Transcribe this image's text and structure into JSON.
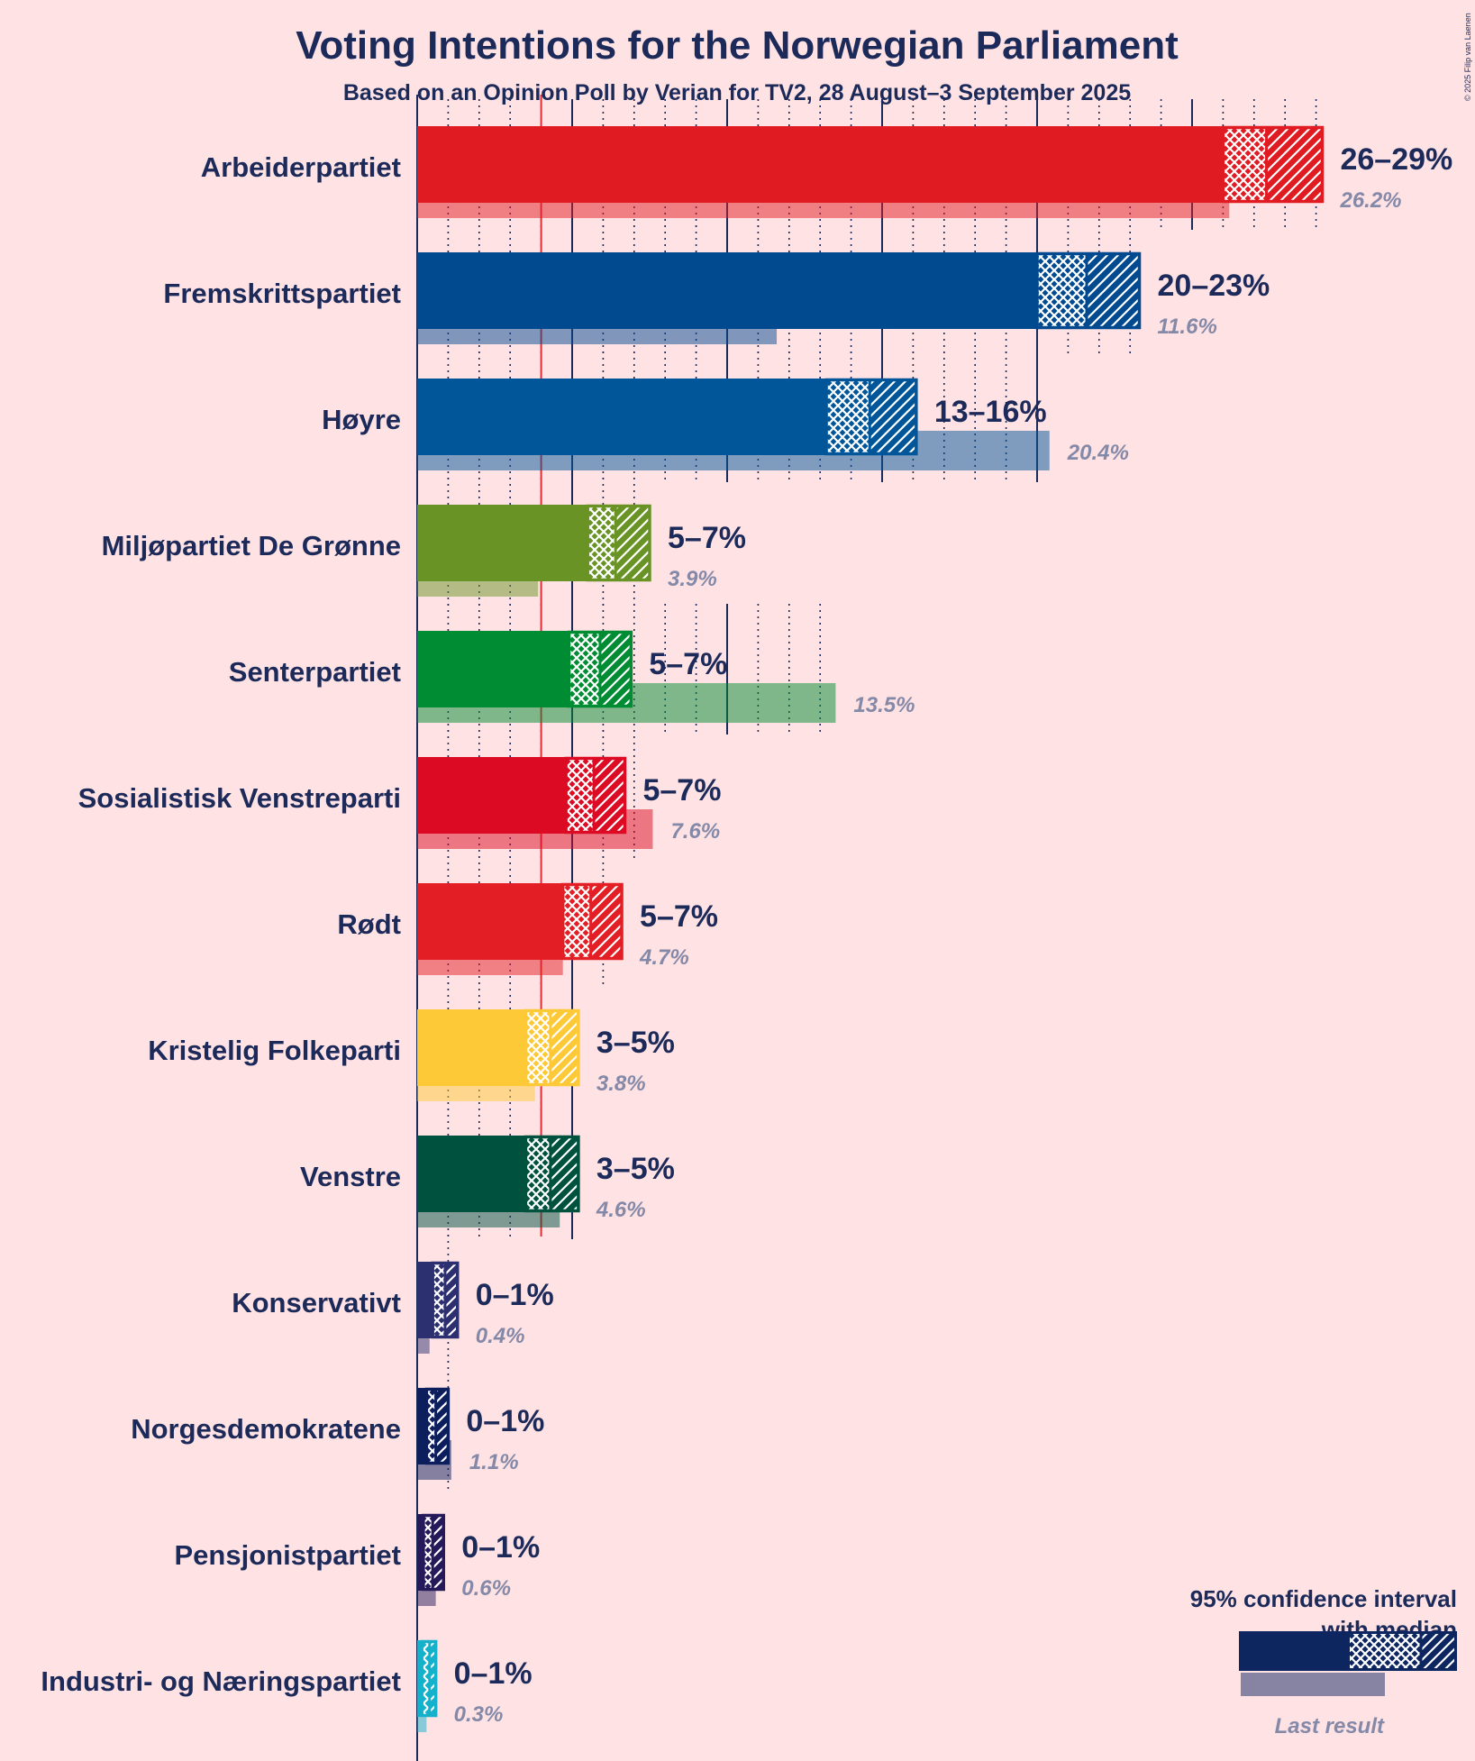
{
  "chart_data": {
    "type": "bar",
    "title": "Voting Intentions for the Norwegian Parliament",
    "subtitle": "Based on an Opinion Poll by Verian for TV2, 28 August–3 September 2025",
    "copyright": "© 2025 Filip van Laenen",
    "orientation": "horizontal",
    "threshold": 4,
    "x_range": [
      0,
      30
    ],
    "series": [
      {
        "name": "Arbeiderpartiet",
        "range_label": "26–29%",
        "last_label": "26.2%",
        "last": 26.2,
        "ci_low": 26.0,
        "median": 27.4,
        "ci_high": 29.2,
        "color": "#E01B22"
      },
      {
        "name": "Fremskrittspartiet",
        "range_label": "20–23%",
        "last_label": "11.6%",
        "last": 11.6,
        "ci_low": 20.0,
        "median": 21.6,
        "ci_high": 23.3,
        "color": "#024A90"
      },
      {
        "name": "Høyre",
        "range_label": "13–16%",
        "last_label": "20.4%",
        "last": 20.4,
        "ci_low": 13.2,
        "median": 14.6,
        "ci_high": 16.1,
        "color": "#005698"
      },
      {
        "name": "Miljøpartiet De Grønne",
        "range_label": "5–7%",
        "last_label": "3.9%",
        "last": 3.9,
        "ci_low": 5.5,
        "median": 6.4,
        "ci_high": 7.5,
        "color": "#6A9326"
      },
      {
        "name": "Senterpartiet",
        "range_label": "5–7%",
        "last_label": "13.5%",
        "last": 13.5,
        "ci_low": 4.9,
        "median": 5.9,
        "ci_high": 6.9,
        "color": "#008C32"
      },
      {
        "name": "Sosialistisk Venstreparti",
        "range_label": "5–7%",
        "last_label": "7.6%",
        "last": 7.6,
        "ci_low": 4.8,
        "median": 5.7,
        "ci_high": 6.7,
        "color": "#DC0A22"
      },
      {
        "name": "Rødt",
        "range_label": "5–7%",
        "last_label": "4.7%",
        "last": 4.7,
        "ci_low": 4.7,
        "median": 5.6,
        "ci_high": 6.6,
        "color": "#E31E24"
      },
      {
        "name": "Kristelig Folkeparti",
        "range_label": "3–5%",
        "last_label": "3.8%",
        "last": 3.8,
        "ci_low": 3.5,
        "median": 4.3,
        "ci_high": 5.2,
        "color": "#FEC936"
      },
      {
        "name": "Venstre",
        "range_label": "3–5%",
        "last_label": "4.6%",
        "last": 4.6,
        "ci_low": 3.5,
        "median": 4.3,
        "ci_high": 5.2,
        "color": "#00523F"
      },
      {
        "name": "Konservativt",
        "range_label": "0–1%",
        "last_label": "0.4%",
        "last": 0.4,
        "ci_low": 0.5,
        "median": 0.9,
        "ci_high": 1.3,
        "color": "#2D3070"
      },
      {
        "name": "Norgesdemokratene",
        "range_label": "0–1%",
        "last_label": "1.1%",
        "last": 1.1,
        "ci_low": 0.3,
        "median": 0.6,
        "ci_high": 1.0,
        "color": "#0D1E5C"
      },
      {
        "name": "Pensjonistpartiet",
        "range_label": "0–1%",
        "last_label": "0.6%",
        "last": 0.6,
        "ci_low": 0.2,
        "median": 0.5,
        "ci_high": 0.85,
        "color": "#26195A"
      },
      {
        "name": "Industri- og Næringspartiet",
        "range_label": "0–1%",
        "last_label": "0.3%",
        "last": 0.3,
        "ci_low": 0.15,
        "median": 0.4,
        "ci_high": 0.6,
        "color": "#14B1CB"
      }
    ],
    "legend": {
      "line1": "95% confidence interval",
      "line2": "with median",
      "last_result": "Last result",
      "color": "#0D2660"
    }
  }
}
